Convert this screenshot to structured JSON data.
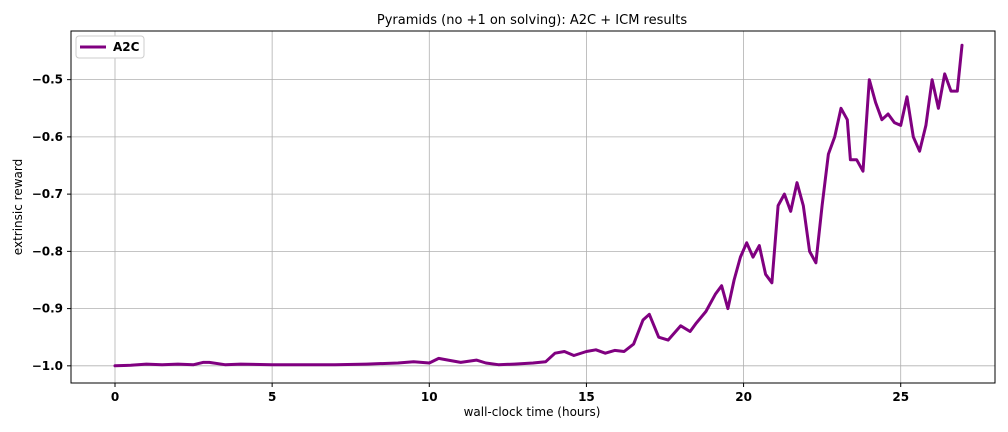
{
  "chart_data": {
    "type": "line",
    "title": "Pyramids (no +1 on solving): A2C + ICM results",
    "xlabel": "wall-clock time (hours)",
    "ylabel": "extrinsic reward",
    "xlim": [
      -1.4,
      28.0
    ],
    "ylim": [
      -1.03,
      -0.415
    ],
    "xticks": [
      0,
      5,
      10,
      15,
      20,
      25
    ],
    "yticks": [
      -1.0,
      -0.9,
      -0.8,
      -0.7,
      -0.6,
      -0.5
    ],
    "xtick_labels": [
      "0",
      "5",
      "10",
      "15",
      "20",
      "25"
    ],
    "ytick_labels": [
      "−1.0",
      "−0.9",
      "−0.8",
      "−0.7",
      "−0.6",
      "−0.5"
    ],
    "grid": true,
    "legend_position": "top-left",
    "series": [
      {
        "name": "A2C",
        "color": "#800080",
        "x": [
          0.0,
          0.5,
          1.0,
          1.5,
          2.0,
          2.5,
          2.8,
          3.0,
          3.5,
          4.0,
          5.0,
          6.0,
          7.0,
          8.0,
          9.0,
          9.5,
          10.0,
          10.3,
          10.6,
          11.0,
          11.5,
          11.8,
          12.2,
          12.7,
          13.3,
          13.7,
          14.0,
          14.3,
          14.6,
          15.0,
          15.3,
          15.6,
          15.9,
          16.2,
          16.5,
          16.8,
          17.0,
          17.3,
          17.6,
          18.0,
          18.3,
          18.5,
          18.8,
          19.1,
          19.3,
          19.5,
          19.7,
          19.9,
          20.1,
          20.3,
          20.5,
          20.7,
          20.9,
          21.1,
          21.3,
          21.5,
          21.7,
          21.9,
          22.1,
          22.3,
          22.5,
          22.7,
          22.9,
          23.1,
          23.3,
          23.4,
          23.6,
          23.8,
          24.0,
          24.2,
          24.4,
          24.6,
          24.8,
          25.0,
          25.2,
          25.4,
          25.6,
          25.8,
          26.0,
          26.2,
          26.4,
          26.6,
          26.8,
          26.95
        ],
        "values": [
          -1.0,
          -0.999,
          -0.997,
          -0.998,
          -0.997,
          -0.998,
          -0.994,
          -0.994,
          -0.998,
          -0.997,
          -0.998,
          -0.998,
          -0.998,
          -0.997,
          -0.995,
          -0.993,
          -0.995,
          -0.987,
          -0.99,
          -0.994,
          -0.99,
          -0.995,
          -0.998,
          -0.997,
          -0.995,
          -0.993,
          -0.978,
          -0.975,
          -0.982,
          -0.975,
          -0.972,
          -0.978,
          -0.973,
          -0.975,
          -0.962,
          -0.92,
          -0.91,
          -0.95,
          -0.955,
          -0.93,
          -0.94,
          -0.925,
          -0.905,
          -0.875,
          -0.86,
          -0.9,
          -0.85,
          -0.81,
          -0.785,
          -0.81,
          -0.79,
          -0.84,
          -0.855,
          -0.72,
          -0.7,
          -0.73,
          -0.68,
          -0.72,
          -0.8,
          -0.82,
          -0.72,
          -0.63,
          -0.6,
          -0.55,
          -0.57,
          -0.64,
          -0.64,
          -0.66,
          -0.5,
          -0.54,
          -0.57,
          -0.56,
          -0.575,
          -0.58,
          -0.53,
          -0.6,
          -0.625,
          -0.58,
          -0.5,
          -0.55,
          -0.49,
          -0.52,
          -0.52,
          -0.44
        ]
      }
    ]
  }
}
